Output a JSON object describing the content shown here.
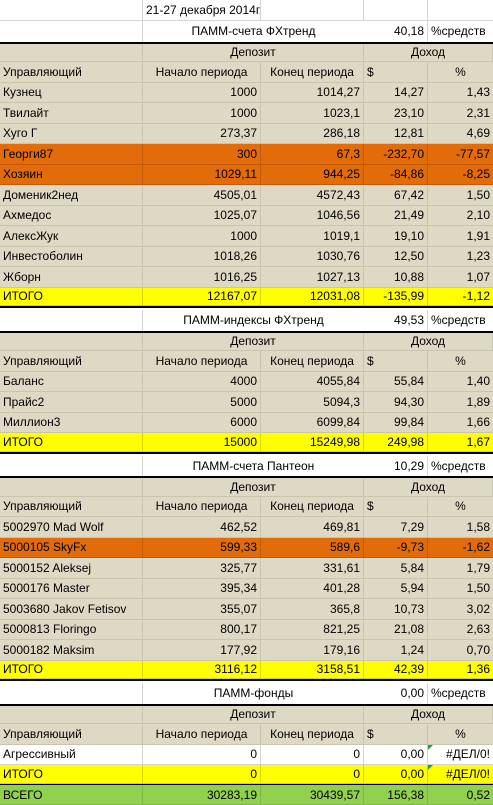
{
  "date_title": "21-27 декабря 2014г.",
  "headers": {
    "deposit": "Депозит",
    "income": "Доход",
    "manager": "Управляющий",
    "start": "Начало периода",
    "end": "Конец периода",
    "usd": "$",
    "pct": "%"
  },
  "sections": [
    {
      "title": "ПАММ-счета ФХтренд",
      "share": "40,18",
      "share_label": "%средств",
      "rows": [
        {
          "name": "Кузнец",
          "start": "1000",
          "end": "1014,27",
          "usd": "14,27",
          "pct": "1,43",
          "style": "data"
        },
        {
          "name": "Твилайт",
          "start": "1000",
          "end": "1023,1",
          "usd": "23,10",
          "pct": "2,31",
          "style": "data"
        },
        {
          "name": "Хуго Г",
          "start": "273,37",
          "end": "286,18",
          "usd": "12,81",
          "pct": "4,69",
          "style": "data"
        },
        {
          "name": "Георги87",
          "start": "300",
          "end": "67,3",
          "usd": "-232,70",
          "pct": "-77,57",
          "style": "loss"
        },
        {
          "name": "Хозяин",
          "start": "1029,11",
          "end": "944,25",
          "usd": "-84,86",
          "pct": "-8,25",
          "style": "loss"
        },
        {
          "name": "Доменик2нед",
          "start": "4505,01",
          "end": "4572,43",
          "usd": "67,42",
          "pct": "1,50",
          "style": "data"
        },
        {
          "name": "Ахмедос",
          "start": "1025,07",
          "end": "1046,56",
          "usd": "21,49",
          "pct": "2,10",
          "style": "data"
        },
        {
          "name": "АлексЖук",
          "start": "1000",
          "end": "1019,1",
          "usd": "19,10",
          "pct": "1,91",
          "style": "data"
        },
        {
          "name": "Инвестоболин",
          "start": "1018,26",
          "end": "1030,76",
          "usd": "12,50",
          "pct": "1,23",
          "style": "data"
        },
        {
          "name": "Жборн",
          "start": "1016,25",
          "end": "1027,13",
          "usd": "10,88",
          "pct": "1,07",
          "style": "data"
        }
      ],
      "total": {
        "name": "ИТОГО",
        "start": "12167,07",
        "end": "12031,08",
        "usd": "-135,99",
        "pct": "-1,12"
      }
    },
    {
      "title": "ПАММ-индексы ФХтренд",
      "share": "49,53",
      "share_label": "%средств",
      "rows": [
        {
          "name": "Баланс",
          "start": "4000",
          "end": "4055,84",
          "usd": "55,84",
          "pct": "1,40",
          "style": "data"
        },
        {
          "name": "Прайс2",
          "start": "5000",
          "end": "5094,3",
          "usd": "94,30",
          "pct": "1,89",
          "style": "data"
        },
        {
          "name": "Миллион3",
          "start": "6000",
          "end": "6099,84",
          "usd": "99,84",
          "pct": "1,66",
          "style": "data"
        }
      ],
      "total": {
        "name": "ИТОГО",
        "start": "15000",
        "end": "15249,98",
        "usd": "249,98",
        "pct": "1,67"
      }
    },
    {
      "title": "ПАММ-счета Пантеон",
      "share": "10,29",
      "share_label": "%средств",
      "rows": [
        {
          "name": "5002970 Mad Wolf",
          "start": "462,52",
          "end": "469,81",
          "usd": "7,29",
          "pct": "1,58",
          "style": "data"
        },
        {
          "name": "5000105 SkyFx",
          "start": "599,33",
          "end": "589,6",
          "usd": "-9,73",
          "pct": "-1,62",
          "style": "loss"
        },
        {
          "name": "5000152 Aleksej",
          "start": "325,77",
          "end": "331,61",
          "usd": "5,84",
          "pct": "1,79",
          "style": "data"
        },
        {
          "name": "5000176 Master",
          "start": "395,34",
          "end": "401,28",
          "usd": "5,94",
          "pct": "1,50",
          "style": "data"
        },
        {
          "name": "5003680 Jakov Fetisov",
          "start": "355,07",
          "end": "365,8",
          "usd": "10,73",
          "pct": "3,02",
          "style": "data"
        },
        {
          "name": "5000813 Floringo",
          "start": "800,17",
          "end": "821,25",
          "usd": "21,08",
          "pct": "2,63",
          "style": "data"
        },
        {
          "name": "5000182 Maksim",
          "start": "177,92",
          "end": "179,16",
          "usd": "1,24",
          "pct": "0,70",
          "style": "data"
        }
      ],
      "total": {
        "name": "ИТОГО",
        "start": "3116,12",
        "end": "3158,51",
        "usd": "42,39",
        "pct": "1,36"
      }
    },
    {
      "title": "ПАММ-фонды",
      "share": "0,00",
      "share_label": "%средств",
      "rows": [
        {
          "name": "Агрессивный",
          "start": "0",
          "end": "0",
          "usd": "0,00",
          "pct": "#ДЕЛ/0!",
          "style": "plain"
        }
      ],
      "total": {
        "name": "ИТОГО",
        "start": "0",
        "end": "0",
        "usd": "0,00",
        "pct": "#ДЕЛ/0!"
      }
    }
  ],
  "grand_total": {
    "name": "ВСЕГО",
    "start": "30283,19",
    "end": "30439,57",
    "usd": "156,38",
    "pct": "0,52"
  }
}
